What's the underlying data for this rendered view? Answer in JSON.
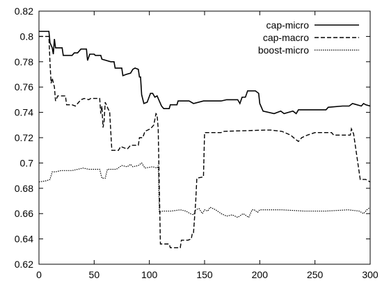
{
  "chart_data": {
    "type": "line",
    "title": "",
    "xlabel": "",
    "ylabel": "",
    "xlim": [
      0,
      300
    ],
    "ylim": [
      0.62,
      0.82
    ],
    "xticks": [
      0,
      50,
      100,
      150,
      200,
      250,
      300
    ],
    "yticks": [
      0.62,
      0.64,
      0.66,
      0.68,
      0.7,
      0.72,
      0.74,
      0.76,
      0.78,
      0.8,
      0.82
    ],
    "x_tick_labels": [
      "0",
      "50",
      "100",
      "150",
      "200",
      "250",
      "300"
    ],
    "y_tick_labels": [
      "0.62",
      "0.64",
      "0.66",
      "0.68",
      "0.7",
      "0.72",
      "0.74",
      "0.76",
      "0.78",
      "0.8",
      "0.82"
    ],
    "grid": false,
    "legend_position": "top-right",
    "series": [
      {
        "name": "cap-micro",
        "style": "solid",
        "color": "#000000",
        "points": [
          [
            0,
            0.804
          ],
          [
            9,
            0.804
          ],
          [
            10,
            0.795
          ],
          [
            12,
            0.791
          ],
          [
            13,
            0.786
          ],
          [
            14,
            0.798
          ],
          [
            15,
            0.791
          ],
          [
            21,
            0.791
          ],
          [
            22,
            0.785
          ],
          [
            30,
            0.785
          ],
          [
            32,
            0.787
          ],
          [
            35,
            0.787
          ],
          [
            38,
            0.79
          ],
          [
            43,
            0.79
          ],
          [
            44,
            0.781
          ],
          [
            46,
            0.786
          ],
          [
            50,
            0.786
          ],
          [
            51,
            0.785
          ],
          [
            56,
            0.785
          ],
          [
            57,
            0.782
          ],
          [
            65,
            0.78
          ],
          [
            68,
            0.78
          ],
          [
            69,
            0.775
          ],
          [
            75,
            0.775
          ],
          [
            76,
            0.769
          ],
          [
            79,
            0.77
          ],
          [
            83,
            0.771
          ],
          [
            85,
            0.774
          ],
          [
            87,
            0.775
          ],
          [
            90,
            0.774
          ],
          [
            91,
            0.768
          ],
          [
            92,
            0.768
          ],
          [
            93,
            0.754
          ],
          [
            95,
            0.747
          ],
          [
            98,
            0.748
          ],
          [
            101,
            0.755
          ],
          [
            103,
            0.755
          ],
          [
            105,
            0.752
          ],
          [
            107,
            0.753
          ],
          [
            111,
            0.745
          ],
          [
            113,
            0.743
          ],
          [
            118,
            0.743
          ],
          [
            119,
            0.746
          ],
          [
            125,
            0.746
          ],
          [
            126,
            0.749
          ],
          [
            136,
            0.749
          ],
          [
            140,
            0.747
          ],
          [
            149,
            0.749
          ],
          [
            165,
            0.749
          ],
          [
            170,
            0.75
          ],
          [
            180,
            0.75
          ],
          [
            182,
            0.747
          ],
          [
            184,
            0.752
          ],
          [
            187,
            0.752
          ],
          [
            189,
            0.757
          ],
          [
            196,
            0.757
          ],
          [
            199,
            0.755
          ],
          [
            200,
            0.747
          ],
          [
            203,
            0.741
          ],
          [
            213,
            0.739
          ],
          [
            219,
            0.741
          ],
          [
            222,
            0.739
          ],
          [
            230,
            0.741
          ],
          [
            233,
            0.739
          ],
          [
            235,
            0.742
          ],
          [
            260,
            0.742
          ],
          [
            262,
            0.744
          ],
          [
            275,
            0.745
          ],
          [
            281,
            0.745
          ],
          [
            284,
            0.747
          ],
          [
            292,
            0.745
          ],
          [
            294,
            0.747
          ],
          [
            296,
            0.746
          ],
          [
            300,
            0.745
          ]
        ]
      },
      {
        "name": "cap-macro",
        "style": "dashed",
        "color": "#000000",
        "points": [
          [
            0,
            0.8
          ],
          [
            9,
            0.8
          ],
          [
            10,
            0.779
          ],
          [
            11,
            0.763
          ],
          [
            12,
            0.767
          ],
          [
            14,
            0.76
          ],
          [
            15,
            0.749
          ],
          [
            17,
            0.753
          ],
          [
            24,
            0.753
          ],
          [
            25,
            0.746
          ],
          [
            30,
            0.746
          ],
          [
            33,
            0.745
          ],
          [
            35,
            0.747
          ],
          [
            38,
            0.75
          ],
          [
            41,
            0.751
          ],
          [
            45,
            0.75
          ],
          [
            47,
            0.751
          ],
          [
            55,
            0.751
          ],
          [
            56,
            0.739
          ],
          [
            57,
            0.745
          ],
          [
            58,
            0.728
          ],
          [
            59,
            0.733
          ],
          [
            60,
            0.748
          ],
          [
            63,
            0.742
          ],
          [
            64,
            0.741
          ],
          [
            66,
            0.71
          ],
          [
            72,
            0.71
          ],
          [
            74,
            0.713
          ],
          [
            80,
            0.711
          ],
          [
            83,
            0.714
          ],
          [
            90,
            0.714
          ],
          [
            91,
            0.72
          ],
          [
            94,
            0.72
          ],
          [
            96,
            0.725
          ],
          [
            101,
            0.727
          ],
          [
            104,
            0.73
          ],
          [
            106,
            0.739
          ],
          [
            107,
            0.738
          ],
          [
            108,
            0.727
          ],
          [
            110,
            0.636
          ],
          [
            118,
            0.636
          ],
          [
            119,
            0.633
          ],
          [
            128,
            0.633
          ],
          [
            129,
            0.639
          ],
          [
            135,
            0.639
          ],
          [
            138,
            0.64
          ],
          [
            139,
            0.645
          ],
          [
            140,
            0.645
          ],
          [
            142,
            0.67
          ],
          [
            143,
            0.688
          ],
          [
            149,
            0.689
          ],
          [
            150,
            0.724
          ],
          [
            165,
            0.724
          ],
          [
            167,
            0.725
          ],
          [
            205,
            0.726
          ],
          [
            210,
            0.726
          ],
          [
            220,
            0.725
          ],
          [
            228,
            0.722
          ],
          [
            232,
            0.719
          ],
          [
            235,
            0.717
          ],
          [
            238,
            0.72
          ],
          [
            243,
            0.722
          ],
          [
            250,
            0.724
          ],
          [
            265,
            0.724
          ],
          [
            267,
            0.722
          ],
          [
            282,
            0.722
          ],
          [
            283,
            0.727
          ],
          [
            285,
            0.723
          ],
          [
            289,
            0.699
          ],
          [
            291,
            0.687
          ],
          [
            296,
            0.687
          ],
          [
            300,
            0.685
          ]
        ]
      },
      {
        "name": "boost-micro",
        "style": "dotted",
        "color": "#000000",
        "points": [
          [
            0,
            0.685
          ],
          [
            7,
            0.686
          ],
          [
            10,
            0.687
          ],
          [
            12,
            0.693
          ],
          [
            15,
            0.693
          ],
          [
            20,
            0.694
          ],
          [
            30,
            0.694
          ],
          [
            35,
            0.695
          ],
          [
            40,
            0.696
          ],
          [
            45,
            0.695
          ],
          [
            55,
            0.695
          ],
          [
            57,
            0.688
          ],
          [
            60,
            0.688
          ],
          [
            62,
            0.695
          ],
          [
            70,
            0.695
          ],
          [
            75,
            0.698
          ],
          [
            80,
            0.697
          ],
          [
            83,
            0.699
          ],
          [
            85,
            0.697
          ],
          [
            90,
            0.698
          ],
          [
            93,
            0.7
          ],
          [
            96,
            0.696
          ],
          [
            103,
            0.697
          ],
          [
            107,
            0.696
          ],
          [
            108,
            0.698
          ],
          [
            109,
            0.661
          ],
          [
            112,
            0.662
          ],
          [
            120,
            0.662
          ],
          [
            128,
            0.663
          ],
          [
            133,
            0.662
          ],
          [
            137,
            0.66
          ],
          [
            140,
            0.659
          ],
          [
            142,
            0.663
          ],
          [
            145,
            0.664
          ],
          [
            148,
            0.66
          ],
          [
            150,
            0.663
          ],
          [
            153,
            0.662
          ],
          [
            155,
            0.665
          ],
          [
            160,
            0.663
          ],
          [
            165,
            0.66
          ],
          [
            170,
            0.658
          ],
          [
            175,
            0.659
          ],
          [
            180,
            0.657
          ],
          [
            185,
            0.66
          ],
          [
            190,
            0.657
          ],
          [
            193,
            0.663
          ],
          [
            195,
            0.663
          ],
          [
            198,
            0.661
          ],
          [
            200,
            0.663
          ],
          [
            220,
            0.663
          ],
          [
            240,
            0.662
          ],
          [
            260,
            0.662
          ],
          [
            280,
            0.663
          ],
          [
            290,
            0.662
          ],
          [
            294,
            0.66
          ],
          [
            297,
            0.663
          ],
          [
            300,
            0.665
          ]
        ]
      }
    ]
  }
}
